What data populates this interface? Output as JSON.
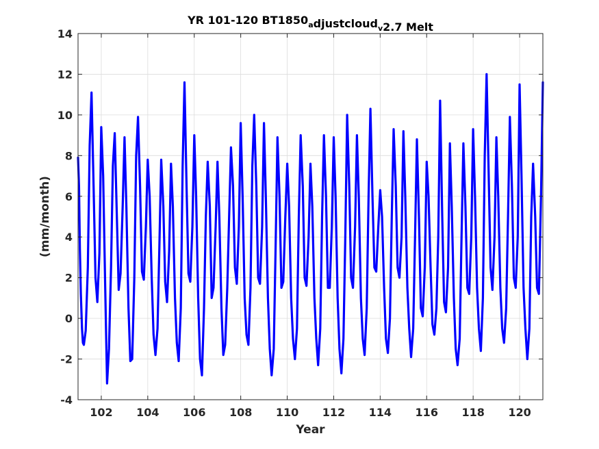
{
  "chart_data": {
    "type": "line",
    "title": {
      "parts": [
        {
          "text": "YR 101-120 BT1850",
          "sub": false
        },
        {
          "text": "a",
          "sub": true
        },
        {
          "text": "djustcloud",
          "sub": false
        },
        {
          "text": "v",
          "sub": true
        },
        {
          "text": "2.7 Melt",
          "sub": false
        }
      ]
    },
    "xlabel": "Year",
    "ylabel": "(mm/month)",
    "xlim": [
      101,
      121
    ],
    "ylim": [
      -4,
      14
    ],
    "xticks": [
      102,
      104,
      106,
      108,
      110,
      112,
      114,
      116,
      118,
      120
    ],
    "yticks": [
      -4,
      -2,
      0,
      2,
      4,
      6,
      8,
      10,
      12,
      14
    ],
    "grid": true,
    "line_color": "#0000ff",
    "series": [
      {
        "annual_extremes": [
          {
            "year_start": 101,
            "max": 8.0,
            "min": -1.3,
            "shoulder": 3.5
          },
          {
            "year_start": 102,
            "max": 11.1,
            "min": -0.5,
            "shoulder": 0.8
          },
          {
            "year_start": 103,
            "max": 9.5,
            "min": -3.2,
            "shoulder": 2.5
          },
          {
            "year_start": 104,
            "max": 9.1,
            "min": 1.4,
            "shoulder": 3.0
          },
          {
            "year_start": 105,
            "max": 8.9,
            "min": -2.1,
            "shoulder": 2.5
          },
          {
            "year_start": 106,
            "max": 9.9,
            "min": 1.9,
            "shoulder": 3.0
          },
          {
            "year_start": 107,
            "max": 7.8,
            "min": -1.8,
            "shoulder": 3.0
          },
          {
            "year_start": 108,
            "max": 7.8,
            "min": 0.8,
            "shoulder": 2.5
          },
          {
            "year_start": 109,
            "max": 7.6,
            "min": -2.1,
            "shoulder": 2.5
          },
          {
            "year_start": 110,
            "max": 11.6,
            "min": 1.8,
            "shoulder": 2.5
          },
          {
            "year_start": 111,
            "max": 9.0,
            "min": -2.8,
            "shoulder": 2.5
          },
          {
            "year_start": 112,
            "max": 7.7,
            "min": 1.0,
            "shoulder": 2.5
          },
          {
            "year_start": 113,
            "max": 8.4,
            "min": -1.8,
            "shoulder": 2.5
          },
          {
            "year_start": 114,
            "max": 9.6,
            "min": 1.7,
            "shoulder": 2.5
          },
          {
            "year_start": 115,
            "max": 10.0,
            "min": -1.3,
            "shoulder": 2.5
          },
          {
            "year_start": 116,
            "max": 9.6,
            "min": 1.7,
            "shoulder": 2.5
          },
          {
            "year_start": 117,
            "max": 8.9,
            "min": -2.8,
            "shoulder": 2.5
          },
          {
            "year_start": 118,
            "max": 7.6,
            "min": 1.8,
            "shoulder": 2.5
          },
          {
            "year_start": 119,
            "max": 9.0,
            "min": -2.0,
            "shoulder": 2.5
          },
          {
            "year_start": 120,
            "max": 7.6,
            "min": 0.8,
            "shoulder": 2.5
          }
        ],
        "x": [
          101.0,
          101.04,
          101.08,
          101.12,
          101.17,
          101.21,
          101.25,
          101.33,
          101.42,
          101.5,
          101.58,
          101.67,
          101.75,
          101.83,
          101.92,
          102.0,
          102.08,
          102.17,
          102.25,
          102.33,
          102.42,
          102.5,
          102.58,
          102.67,
          102.75,
          102.83,
          102.92,
          103.0,
          103.08,
          103.17,
          103.25,
          103.33,
          103.42,
          103.5,
          103.58,
          103.67,
          103.75,
          103.83,
          103.92,
          104.0,
          104.08,
          104.17,
          104.25,
          104.33,
          104.42,
          104.5,
          104.58,
          104.67,
          104.75,
          104.83,
          104.92,
          105.0,
          105.08,
          105.17,
          105.25,
          105.33,
          105.42,
          105.5,
          105.58,
          105.67,
          105.75,
          105.83,
          105.92,
          106.0,
          106.08,
          106.17,
          106.25,
          106.33,
          106.42,
          106.5,
          106.58,
          106.67,
          106.75,
          106.83,
          106.92,
          107.0,
          107.08,
          107.17,
          107.25,
          107.33,
          107.42,
          107.5,
          107.58,
          107.67,
          107.75,
          107.83,
          107.92,
          108.0,
          108.08,
          108.17,
          108.25,
          108.33,
          108.42,
          108.5,
          108.58,
          108.67,
          108.75,
          108.83,
          108.92,
          109.0,
          109.08,
          109.17,
          109.25,
          109.33,
          109.42,
          109.5,
          109.58,
          109.67,
          109.75,
          109.83,
          109.92,
          110.0,
          110.08,
          110.17,
          110.25,
          110.33,
          110.42,
          110.5,
          110.58,
          110.67,
          110.75,
          110.83,
          110.92,
          111.0,
          111.08,
          111.17,
          111.25,
          111.33,
          111.42,
          111.5,
          111.58,
          111.67,
          111.75,
          111.83,
          111.92,
          112.0,
          112.08,
          112.17,
          112.25,
          112.33,
          112.42,
          112.5,
          112.58,
          112.67,
          112.75,
          112.83,
          112.92,
          113.0,
          113.08,
          113.17,
          113.25,
          113.33,
          113.42,
          113.5,
          113.58,
          113.67,
          113.75,
          113.83,
          113.92,
          114.0,
          114.08,
          114.17,
          114.25,
          114.33,
          114.42,
          114.5,
          114.58,
          114.67,
          114.75,
          114.83,
          114.92,
          115.0,
          115.08,
          115.17,
          115.25,
          115.33,
          115.42,
          115.5,
          115.58,
          115.67,
          115.75,
          115.83,
          115.92,
          116.0,
          116.08,
          116.17,
          116.25,
          116.33,
          116.42,
          116.5,
          116.58,
          116.67,
          116.75,
          116.83,
          116.92,
          117.0,
          117.08,
          117.17,
          117.25,
          117.33,
          117.42,
          117.5,
          117.58,
          117.67,
          117.75,
          117.83,
          117.92,
          118.0,
          118.08,
          118.17,
          118.25,
          118.33,
          118.42,
          118.5,
          118.58,
          118.67,
          118.75,
          118.83,
          118.92,
          119.0,
          119.08,
          119.17,
          119.25,
          119.33,
          119.42,
          119.5,
          119.58,
          119.67,
          119.75,
          119.83,
          119.92,
          120.0,
          120.08,
          120.17,
          120.25,
          120.33,
          120.42,
          120.5,
          120.58,
          120.67,
          120.75,
          120.83,
          120.92,
          121.0
        ],
        "y": [
          7.9,
          6.5,
          3.4,
          1.2,
          -0.5,
          -1.2,
          -1.3,
          -0.6,
          2.5,
          8.5,
          11.1,
          6.5,
          2.0,
          0.8,
          3.2,
          9.4,
          7.0,
          1.5,
          -3.2,
          -1.5,
          2.5,
          7.5,
          9.1,
          5.0,
          1.4,
          2.2,
          5.5,
          8.9,
          5.5,
          0.5,
          -2.1,
          -2.0,
          2.0,
          8.0,
          9.9,
          6.5,
          2.3,
          1.9,
          4.5,
          7.8,
          6.0,
          2.0,
          -0.8,
          -1.8,
          -0.5,
          3.5,
          7.8,
          5.5,
          1.8,
          0.8,
          3.3,
          7.6,
          5.5,
          1.0,
          -1.2,
          -2.1,
          0.5,
          7.5,
          11.6,
          6.5,
          2.2,
          1.8,
          4.5,
          9.0,
          6.0,
          1.0,
          -2.0,
          -2.8,
          0.5,
          5.0,
          7.7,
          5.5,
          1.0,
          1.5,
          4.5,
          7.7,
          5.0,
          0.5,
          -1.8,
          -1.3,
          1.5,
          5.0,
          8.4,
          6.5,
          2.5,
          1.7,
          4.5,
          9.6,
          6.0,
          1.0,
          -0.8,
          -1.3,
          1.5,
          7.5,
          10.0,
          6.5,
          2.0,
          1.7,
          4.5,
          9.6,
          6.0,
          1.0,
          -1.5,
          -2.8,
          -1.5,
          3.5,
          8.9,
          6.0,
          1.5,
          1.8,
          5.0,
          7.6,
          5.5,
          1.0,
          -1.0,
          -2.0,
          -0.5,
          5.0,
          9.0,
          6.5,
          2.0,
          1.6,
          4.0,
          7.6,
          5.5,
          1.0,
          -1.0,
          -2.3,
          -0.5,
          5.0,
          9.0,
          6.0,
          1.5,
          1.5,
          4.5,
          8.9,
          6.0,
          1.0,
          -1.5,
          -2.7,
          -1.0,
          4.0,
          10.0,
          6.5,
          2.0,
          1.5,
          4.5,
          9.0,
          6.0,
          1.0,
          -1.0,
          -1.8,
          0.5,
          6.0,
          10.3,
          6.0,
          2.5,
          2.3,
          4.5,
          6.3,
          5.0,
          1.5,
          -1.0,
          -1.7,
          0.0,
          5.0,
          9.3,
          6.5,
          2.5,
          2.0,
          4.0,
          9.2,
          6.0,
          1.5,
          -0.5,
          -1.9,
          -0.5,
          4.0,
          8.8,
          5.0,
          0.5,
          0.1,
          2.5,
          7.7,
          6.0,
          2.5,
          -0.3,
          -0.8,
          0.5,
          4.0,
          10.7,
          5.0,
          0.8,
          0.3,
          2.5,
          8.6,
          5.5,
          1.0,
          -1.5,
          -2.3,
          -1.0,
          4.0,
          8.6,
          5.5,
          1.5,
          1.2,
          4.0,
          9.3,
          6.0,
          1.5,
          -0.5,
          -1.6,
          1.0,
          8.0,
          12.0,
          7.0,
          2.5,
          1.4,
          4.0,
          8.9,
          6.0,
          1.5,
          -0.5,
          -1.2,
          0.5,
          5.0,
          9.9,
          6.5,
          2.0,
          1.5,
          4.0,
          11.5,
          7.0,
          1.5,
          -0.5,
          -2.0,
          -0.5,
          5.0,
          7.6,
          5.0,
          1.5,
          1.2,
          6.0,
          11.6
        ]
      }
    ]
  }
}
